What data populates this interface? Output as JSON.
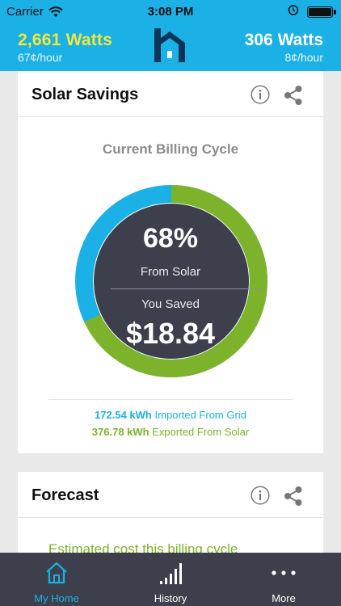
{
  "status_bar": {
    "carrier": "Carrier",
    "time": "3:08 PM"
  },
  "header": {
    "solar": {
      "watts": "2,661 Watts",
      "rate": "67¢/hour"
    },
    "grid": {
      "watts": "306 Watts",
      "rate": "8¢/hour"
    }
  },
  "savings_card": {
    "title": "Solar Savings",
    "cycle_label": "Current Billing Cycle",
    "percent": "68%",
    "percent_label": "From Solar",
    "saved_label": "You Saved",
    "saved_amount": "$18.84",
    "solar_fraction": 0.68,
    "imported_value": "172.54 kWh",
    "imported_label": "Imported From Grid",
    "exported_value": "376.78 kWh",
    "exported_label": "Exported From Solar"
  },
  "forecast_card": {
    "title": "Forecast",
    "estimate_text": "Estimated cost this billing cycle"
  },
  "tabs": [
    {
      "label": "My Home",
      "icon": "home-icon",
      "active": true
    },
    {
      "label": "History",
      "icon": "bars-icon",
      "active": false
    },
    {
      "label": "More",
      "icon": "more-icon",
      "active": false
    }
  ],
  "colors": {
    "accent": "#1cb1e6",
    "solar_green": "#7cb32a",
    "yellow": "#f3e73a",
    "dark": "#3d404c"
  }
}
